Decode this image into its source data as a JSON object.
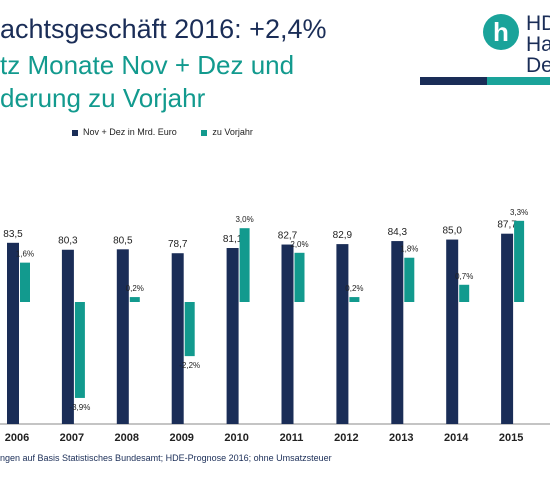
{
  "header": {
    "title_line1": "achtsgeschäft 2016: +2,4%",
    "title_line2": "tz Monate Nov + Dez und",
    "title_line3": "derung zu Vorjahr"
  },
  "logo": {
    "glyph": "h",
    "line1": "HD",
    "line2": "Han",
    "line3": "Deu",
    "colors": {
      "teal": "#1aa39a",
      "navy": "#1a2d57"
    }
  },
  "chart_data": {
    "type": "bar",
    "categories": [
      "2006",
      "2007",
      "2008",
      "2009",
      "2010",
      "2011",
      "2012",
      "2013",
      "2014",
      "2015"
    ],
    "series": [
      {
        "name": "Nov + Dez in Mrd. Euro",
        "color": "#1a2d57",
        "values": [
          83.5,
          80.3,
          80.5,
          78.7,
          81.1,
          82.7,
          82.9,
          84.3,
          85.0,
          87.7
        ],
        "labels": [
          "83,5",
          "80,3",
          "80,5",
          "78,7",
          "81,1",
          "82,7",
          "82,9",
          "84,3",
          "85,0",
          "87,7"
        ]
      },
      {
        "name": "zu Vorjahr",
        "color": "#129a8e",
        "values": [
          1.6,
          -3.9,
          0.2,
          -2.2,
          3.0,
          2.0,
          0.2,
          1.8,
          0.7,
          3.3
        ],
        "labels": [
          "1,6%",
          "-3,9%",
          "0,2%",
          "-2,2%",
          "3,0%",
          "2,0%",
          "0,2%",
          "1,8%",
          "0,7%",
          "3,3%"
        ]
      }
    ],
    "legend_position": "top"
  },
  "footnote": "ngen auf Basis Statistisches Bundesamt; HDE-Prognose 2016; ohne Umsatzsteuer"
}
